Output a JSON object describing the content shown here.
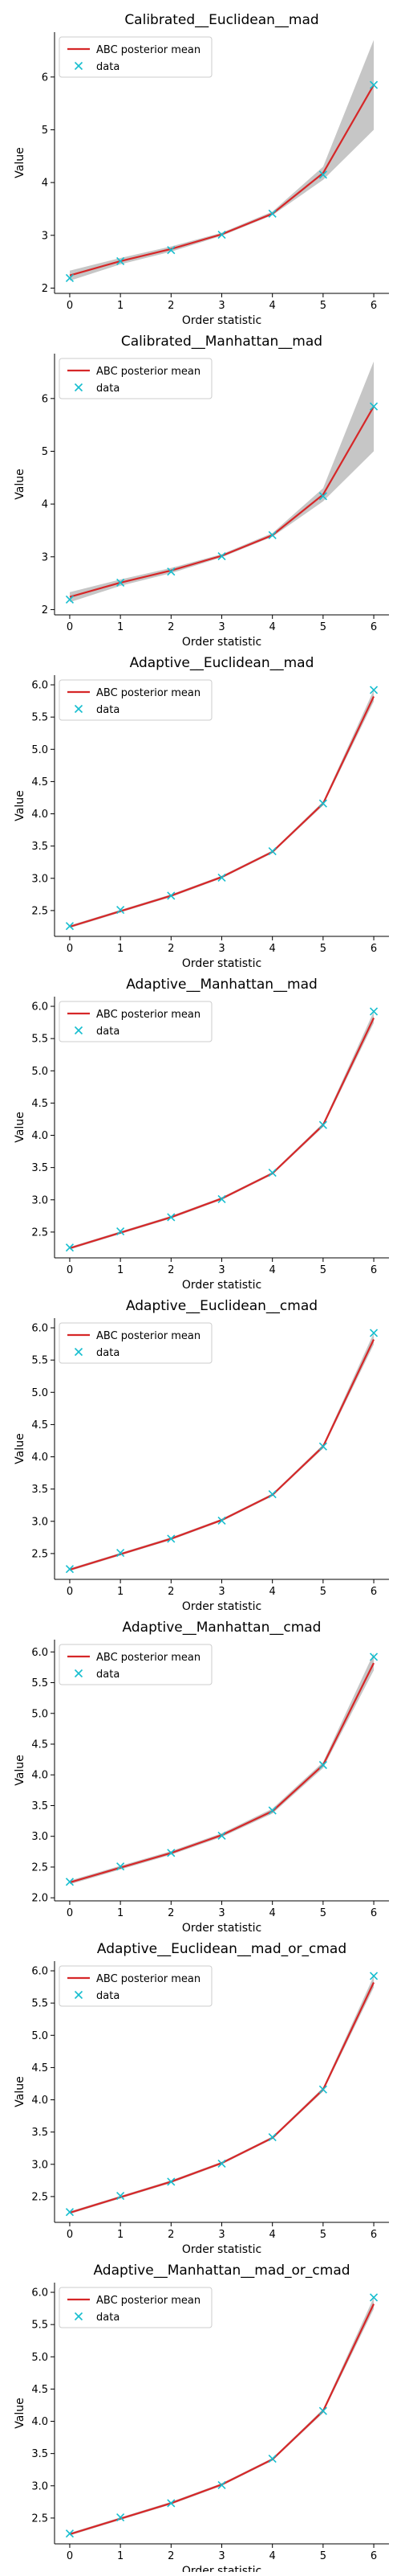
{
  "colors": {
    "mean": "#d62728",
    "data": "#17becf",
    "band": "#808080",
    "axis": "#000000"
  },
  "chart_data": [
    {
      "type": "line",
      "title": "Calibrated__Euclidean__mad",
      "xlabel": "Order statistic",
      "ylabel": "Value",
      "x": [
        0,
        1,
        2,
        3,
        4,
        5,
        6
      ],
      "xticks": [
        "0",
        "1",
        "2",
        "3",
        "4",
        "5",
        "6"
      ],
      "ylim": [
        1.9,
        6.85
      ],
      "yticks": [
        2,
        3,
        4,
        5,
        6
      ],
      "legend_position": "top-left",
      "series": [
        {
          "name": "ABC posterior mean",
          "kind": "line",
          "values": [
            2.24,
            2.51,
            2.74,
            3.02,
            3.41,
            4.18,
            5.85
          ]
        },
        {
          "name": "data",
          "kind": "marker",
          "values": [
            2.19,
            2.51,
            2.72,
            3.01,
            3.41,
            4.15,
            5.85
          ]
        }
      ],
      "band": {
        "lower": [
          2.14,
          2.45,
          2.69,
          2.99,
          3.38,
          4.05,
          5.0
        ],
        "upper": [
          2.33,
          2.57,
          2.79,
          3.05,
          3.45,
          4.3,
          6.7
        ]
      }
    },
    {
      "type": "line",
      "title": "Calibrated__Manhattan__mad",
      "xlabel": "Order statistic",
      "ylabel": "Value",
      "x": [
        0,
        1,
        2,
        3,
        4,
        5,
        6
      ],
      "xticks": [
        "0",
        "1",
        "2",
        "3",
        "4",
        "5",
        "6"
      ],
      "ylim": [
        1.9,
        6.85
      ],
      "yticks": [
        2,
        3,
        4,
        5,
        6
      ],
      "legend_position": "top-left",
      "series": [
        {
          "name": "ABC posterior mean",
          "kind": "line",
          "values": [
            2.24,
            2.51,
            2.74,
            3.02,
            3.41,
            4.18,
            5.85
          ]
        },
        {
          "name": "data",
          "kind": "marker",
          "values": [
            2.19,
            2.51,
            2.72,
            3.01,
            3.41,
            4.15,
            5.85
          ]
        }
      ],
      "band": {
        "lower": [
          2.14,
          2.45,
          2.69,
          2.99,
          3.38,
          4.05,
          5.0
        ],
        "upper": [
          2.33,
          2.57,
          2.79,
          3.05,
          3.45,
          4.3,
          6.7
        ]
      }
    },
    {
      "type": "line",
      "title": "Adaptive__Euclidean__mad",
      "xlabel": "Order statistic",
      "ylabel": "Value",
      "x": [
        0,
        1,
        2,
        3,
        4,
        5,
        6
      ],
      "xticks": [
        "0",
        "1",
        "2",
        "3",
        "4",
        "5",
        "6"
      ],
      "ylim": [
        2.1,
        6.15
      ],
      "yticks": [
        2.5,
        3.0,
        3.5,
        4.0,
        4.5,
        5.0,
        5.5,
        6.0
      ],
      "yticklabels": [
        "2.5",
        "3.0",
        "3.5",
        "4.0",
        "4.5",
        "5.0",
        "5.5",
        "6.0"
      ],
      "legend_position": "top-left",
      "series": [
        {
          "name": "ABC posterior mean",
          "kind": "line",
          "values": [
            2.25,
            2.49,
            2.73,
            3.02,
            3.41,
            4.16,
            5.82
          ]
        },
        {
          "name": "data",
          "kind": "marker",
          "values": [
            2.26,
            2.51,
            2.73,
            3.01,
            3.42,
            4.16,
            5.92
          ]
        }
      ],
      "band": {
        "lower": [
          2.23,
          2.47,
          2.71,
          3.0,
          3.39,
          4.13,
          5.74
        ],
        "upper": [
          2.27,
          2.51,
          2.75,
          3.04,
          3.43,
          4.19,
          5.92
        ]
      }
    },
    {
      "type": "line",
      "title": "Adaptive__Manhattan__mad",
      "xlabel": "Order statistic",
      "ylabel": "Value",
      "x": [
        0,
        1,
        2,
        3,
        4,
        5,
        6
      ],
      "xticks": [
        "0",
        "1",
        "2",
        "3",
        "4",
        "5",
        "6"
      ],
      "ylim": [
        2.1,
        6.15
      ],
      "yticks": [
        2.5,
        3.0,
        3.5,
        4.0,
        4.5,
        5.0,
        5.5,
        6.0
      ],
      "yticklabels": [
        "2.5",
        "3.0",
        "3.5",
        "4.0",
        "4.5",
        "5.0",
        "5.5",
        "6.0"
      ],
      "legend_position": "top-left",
      "series": [
        {
          "name": "ABC posterior mean",
          "kind": "line",
          "values": [
            2.25,
            2.49,
            2.73,
            3.02,
            3.41,
            4.16,
            5.82
          ]
        },
        {
          "name": "data",
          "kind": "marker",
          "values": [
            2.26,
            2.51,
            2.73,
            3.01,
            3.42,
            4.16,
            5.92
          ]
        }
      ],
      "band": {
        "lower": [
          2.23,
          2.47,
          2.71,
          3.0,
          3.39,
          4.13,
          5.74
        ],
        "upper": [
          2.27,
          2.51,
          2.75,
          3.04,
          3.43,
          4.19,
          5.92
        ]
      }
    },
    {
      "type": "line",
      "title": "Adaptive__Euclidean__cmad",
      "xlabel": "Order statistic",
      "ylabel": "Value",
      "x": [
        0,
        1,
        2,
        3,
        4,
        5,
        6
      ],
      "xticks": [
        "0",
        "1",
        "2",
        "3",
        "4",
        "5",
        "6"
      ],
      "ylim": [
        2.1,
        6.15
      ],
      "yticks": [
        2.5,
        3.0,
        3.5,
        4.0,
        4.5,
        5.0,
        5.5,
        6.0
      ],
      "yticklabels": [
        "2.5",
        "3.0",
        "3.5",
        "4.0",
        "4.5",
        "5.0",
        "5.5",
        "6.0"
      ],
      "legend_position": "top-left",
      "series": [
        {
          "name": "ABC posterior mean",
          "kind": "line",
          "values": [
            2.25,
            2.49,
            2.73,
            3.02,
            3.41,
            4.16,
            5.82
          ]
        },
        {
          "name": "data",
          "kind": "marker",
          "values": [
            2.26,
            2.51,
            2.73,
            3.01,
            3.42,
            4.16,
            5.92
          ]
        }
      ],
      "band": {
        "lower": [
          2.23,
          2.47,
          2.71,
          3.0,
          3.39,
          4.13,
          5.74
        ],
        "upper": [
          2.27,
          2.51,
          2.75,
          3.04,
          3.43,
          4.19,
          5.92
        ]
      }
    },
    {
      "type": "line",
      "title": "Adaptive__Manhattan__cmad",
      "xlabel": "Order statistic",
      "ylabel": "Value",
      "x": [
        0,
        1,
        2,
        3,
        4,
        5,
        6
      ],
      "xticks": [
        "0",
        "1",
        "2",
        "3",
        "4",
        "5",
        "6"
      ],
      "ylim": [
        1.95,
        6.2
      ],
      "yticks": [
        2.0,
        2.5,
        3.0,
        3.5,
        4.0,
        4.5,
        5.0,
        5.5,
        6.0
      ],
      "yticklabels": [
        "2.0",
        "2.5",
        "3.0",
        "3.5",
        "4.0",
        "4.5",
        "5.0",
        "5.5",
        "6.0"
      ],
      "legend_position": "top-left",
      "series": [
        {
          "name": "ABC posterior mean",
          "kind": "line",
          "values": [
            2.25,
            2.49,
            2.73,
            3.02,
            3.41,
            4.16,
            5.82
          ]
        },
        {
          "name": "data",
          "kind": "marker",
          "values": [
            2.26,
            2.51,
            2.73,
            3.01,
            3.42,
            4.16,
            5.92
          ]
        }
      ],
      "band": {
        "lower": [
          2.22,
          2.46,
          2.7,
          2.99,
          3.37,
          4.11,
          5.7
        ],
        "upper": [
          2.28,
          2.52,
          2.76,
          3.05,
          3.45,
          4.21,
          5.98
        ]
      }
    },
    {
      "type": "line",
      "title": "Adaptive__Euclidean__mad_or_cmad",
      "xlabel": "Order statistic",
      "ylabel": "Value",
      "x": [
        0,
        1,
        2,
        3,
        4,
        5,
        6
      ],
      "xticks": [
        "0",
        "1",
        "2",
        "3",
        "4",
        "5",
        "6"
      ],
      "ylim": [
        2.1,
        6.15
      ],
      "yticks": [
        2.5,
        3.0,
        3.5,
        4.0,
        4.5,
        5.0,
        5.5,
        6.0
      ],
      "yticklabels": [
        "2.5",
        "3.0",
        "3.5",
        "4.0",
        "4.5",
        "5.0",
        "5.5",
        "6.0"
      ],
      "legend_position": "top-left",
      "series": [
        {
          "name": "ABC posterior mean",
          "kind": "line",
          "values": [
            2.25,
            2.49,
            2.73,
            3.02,
            3.41,
            4.16,
            5.82
          ]
        },
        {
          "name": "data",
          "kind": "marker",
          "values": [
            2.26,
            2.51,
            2.73,
            3.01,
            3.42,
            4.16,
            5.92
          ]
        }
      ],
      "band": {
        "lower": [
          2.23,
          2.47,
          2.71,
          3.0,
          3.39,
          4.13,
          5.74
        ],
        "upper": [
          2.27,
          2.51,
          2.75,
          3.04,
          3.43,
          4.19,
          5.92
        ]
      }
    },
    {
      "type": "line",
      "title": "Adaptive__Manhattan__mad_or_cmad",
      "xlabel": "Order statistic",
      "ylabel": "Value",
      "x": [
        0,
        1,
        2,
        3,
        4,
        5,
        6
      ],
      "xticks": [
        "0",
        "1",
        "2",
        "3",
        "4",
        "5",
        "6"
      ],
      "ylim": [
        2.1,
        6.15
      ],
      "yticks": [
        2.5,
        3.0,
        3.5,
        4.0,
        4.5,
        5.0,
        5.5,
        6.0
      ],
      "yticklabels": [
        "2.5",
        "3.0",
        "3.5",
        "4.0",
        "4.5",
        "5.0",
        "5.5",
        "6.0"
      ],
      "legend_position": "top-left",
      "series": [
        {
          "name": "ABC posterior mean",
          "kind": "line",
          "values": [
            2.25,
            2.49,
            2.73,
            3.02,
            3.41,
            4.16,
            5.82
          ]
        },
        {
          "name": "data",
          "kind": "marker",
          "values": [
            2.26,
            2.51,
            2.73,
            3.01,
            3.42,
            4.16,
            5.92
          ]
        }
      ],
      "band": {
        "lower": [
          2.23,
          2.47,
          2.71,
          3.0,
          3.39,
          4.13,
          5.74
        ],
        "upper": [
          2.27,
          2.51,
          2.75,
          3.04,
          3.43,
          4.19,
          5.92
        ]
      }
    }
  ]
}
